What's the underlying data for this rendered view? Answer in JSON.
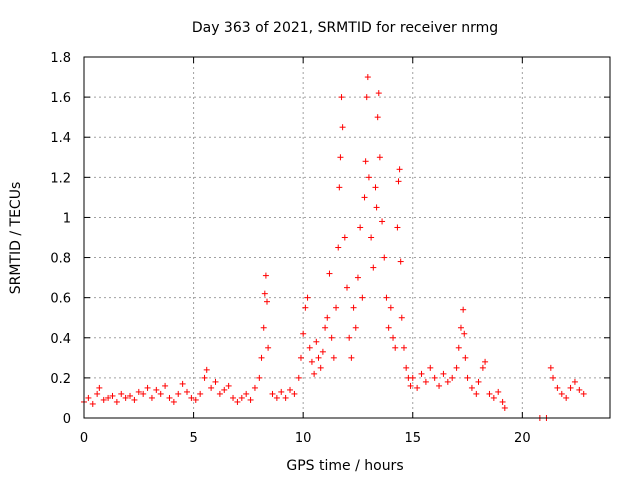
{
  "chart_data": {
    "type": "scatter",
    "title": "Day 363 of 2021, SRMTID for receiver nrmg",
    "xlabel": "GPS time / hours",
    "ylabel": "SRMTID / TECUs",
    "xlim": [
      0,
      24
    ],
    "ylim": [
      0,
      1.8
    ],
    "xticks": [
      0,
      5,
      10,
      15,
      20
    ],
    "xtick_labels": [
      "0",
      "5",
      "10",
      "15",
      "20"
    ],
    "yticks": [
      0,
      0.2,
      0.4,
      0.6,
      0.8,
      1,
      1.2,
      1.4,
      1.6,
      1.8
    ],
    "ytick_labels": [
      "0",
      "0.2",
      "0.4",
      "0.6",
      "0.8",
      "1",
      "1.2",
      "1.4",
      "1.6",
      "1.8"
    ],
    "grid": true,
    "marker": "plus",
    "color": "#ff0000",
    "series": [
      {
        "name": "SRMTID",
        "points": [
          [
            0.0,
            0.08
          ],
          [
            0.2,
            0.1
          ],
          [
            0.4,
            0.07
          ],
          [
            0.6,
            0.12
          ],
          [
            0.7,
            0.15
          ],
          [
            0.9,
            0.09
          ],
          [
            1.1,
            0.1
          ],
          [
            1.3,
            0.11
          ],
          [
            1.5,
            0.08
          ],
          [
            1.7,
            0.12
          ],
          [
            1.9,
            0.1
          ],
          [
            2.1,
            0.11
          ],
          [
            2.3,
            0.09
          ],
          [
            2.5,
            0.13
          ],
          [
            2.7,
            0.12
          ],
          [
            2.9,
            0.15
          ],
          [
            3.1,
            0.1
          ],
          [
            3.3,
            0.14
          ],
          [
            3.5,
            0.12
          ],
          [
            3.7,
            0.16
          ],
          [
            3.9,
            0.1
          ],
          [
            4.1,
            0.08
          ],
          [
            4.3,
            0.12
          ],
          [
            4.5,
            0.17
          ],
          [
            4.7,
            0.13
          ],
          [
            4.9,
            0.1
          ],
          [
            5.1,
            0.09
          ],
          [
            5.3,
            0.12
          ],
          [
            5.5,
            0.2
          ],
          [
            5.6,
            0.24
          ],
          [
            5.8,
            0.15
          ],
          [
            6.0,
            0.18
          ],
          [
            6.2,
            0.12
          ],
          [
            6.4,
            0.14
          ],
          [
            6.6,
            0.16
          ],
          [
            6.8,
            0.1
          ],
          [
            7.0,
            0.08
          ],
          [
            7.2,
            0.1
          ],
          [
            7.4,
            0.12
          ],
          [
            7.6,
            0.09
          ],
          [
            7.8,
            0.15
          ],
          [
            8.0,
            0.2
          ],
          [
            8.1,
            0.3
          ],
          [
            8.2,
            0.45
          ],
          [
            8.25,
            0.62
          ],
          [
            8.3,
            0.71
          ],
          [
            8.35,
            0.58
          ],
          [
            8.4,
            0.35
          ],
          [
            8.6,
            0.12
          ],
          [
            8.8,
            0.1
          ],
          [
            9.0,
            0.13
          ],
          [
            9.2,
            0.1
          ],
          [
            9.4,
            0.14
          ],
          [
            9.6,
            0.12
          ],
          [
            9.8,
            0.2
          ],
          [
            9.9,
            0.3
          ],
          [
            10.0,
            0.42
          ],
          [
            10.1,
            0.55
          ],
          [
            10.2,
            0.6
          ],
          [
            10.3,
            0.35
          ],
          [
            10.4,
            0.28
          ],
          [
            10.5,
            0.22
          ],
          [
            10.6,
            0.38
          ],
          [
            10.7,
            0.3
          ],
          [
            10.8,
            0.25
          ],
          [
            10.9,
            0.33
          ],
          [
            11.0,
            0.45
          ],
          [
            11.1,
            0.5
          ],
          [
            11.2,
            0.72
          ],
          [
            11.3,
            0.4
          ],
          [
            11.4,
            0.3
          ],
          [
            11.5,
            0.55
          ],
          [
            11.6,
            0.85
          ],
          [
            11.65,
            1.15
          ],
          [
            11.7,
            1.3
          ],
          [
            11.75,
            1.6
          ],
          [
            11.8,
            1.45
          ],
          [
            11.9,
            0.9
          ],
          [
            12.0,
            0.65
          ],
          [
            12.1,
            0.4
          ],
          [
            12.2,
            0.3
          ],
          [
            12.3,
            0.55
          ],
          [
            12.4,
            0.45
          ],
          [
            12.5,
            0.7
          ],
          [
            12.6,
            0.95
          ],
          [
            12.7,
            0.6
          ],
          [
            12.8,
            1.1
          ],
          [
            12.85,
            1.28
          ],
          [
            12.9,
            1.6
          ],
          [
            12.95,
            1.7
          ],
          [
            13.0,
            1.2
          ],
          [
            13.1,
            0.9
          ],
          [
            13.2,
            0.75
          ],
          [
            13.3,
            1.15
          ],
          [
            13.35,
            1.05
          ],
          [
            13.4,
            1.5
          ],
          [
            13.45,
            1.62
          ],
          [
            13.5,
            1.3
          ],
          [
            13.6,
            0.98
          ],
          [
            13.7,
            0.8
          ],
          [
            13.8,
            0.6
          ],
          [
            13.9,
            0.45
          ],
          [
            14.0,
            0.55
          ],
          [
            14.1,
            0.4
          ],
          [
            14.2,
            0.35
          ],
          [
            14.3,
            0.95
          ],
          [
            14.35,
            1.18
          ],
          [
            14.4,
            1.24
          ],
          [
            14.45,
            0.78
          ],
          [
            14.5,
            0.5
          ],
          [
            14.6,
            0.35
          ],
          [
            14.7,
            0.25
          ],
          [
            14.8,
            0.2
          ],
          [
            14.9,
            0.16
          ],
          [
            15.0,
            0.2
          ],
          [
            15.2,
            0.15
          ],
          [
            15.4,
            0.22
          ],
          [
            15.6,
            0.18
          ],
          [
            15.8,
            0.25
          ],
          [
            16.0,
            0.2
          ],
          [
            16.2,
            0.16
          ],
          [
            16.4,
            0.22
          ],
          [
            16.6,
            0.18
          ],
          [
            16.8,
            0.2
          ],
          [
            17.0,
            0.25
          ],
          [
            17.1,
            0.35
          ],
          [
            17.2,
            0.45
          ],
          [
            17.3,
            0.54
          ],
          [
            17.35,
            0.42
          ],
          [
            17.4,
            0.3
          ],
          [
            17.5,
            0.2
          ],
          [
            17.7,
            0.15
          ],
          [
            17.9,
            0.12
          ],
          [
            18.0,
            0.18
          ],
          [
            18.2,
            0.25
          ],
          [
            18.3,
            0.28
          ],
          [
            18.5,
            0.12
          ],
          [
            18.7,
            0.1
          ],
          [
            18.9,
            0.13
          ],
          [
            19.1,
            0.08
          ],
          [
            19.2,
            0.05
          ],
          [
            20.8,
            0.0
          ],
          [
            21.1,
            0.0
          ],
          [
            21.3,
            0.25
          ],
          [
            21.4,
            0.2
          ],
          [
            21.6,
            0.15
          ],
          [
            21.8,
            0.12
          ],
          [
            22.0,
            0.1
          ],
          [
            22.2,
            0.15
          ],
          [
            22.4,
            0.18
          ],
          [
            22.6,
            0.14
          ],
          [
            22.8,
            0.12
          ]
        ]
      }
    ]
  }
}
